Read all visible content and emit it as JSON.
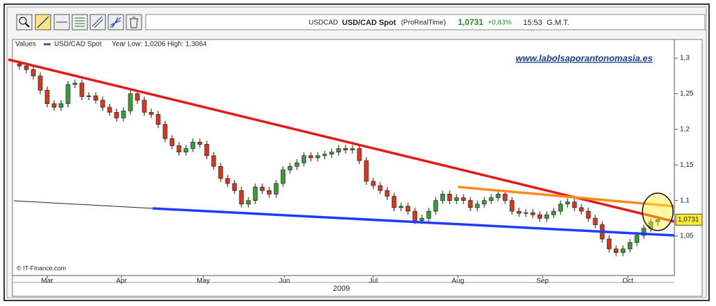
{
  "header": {
    "symbol": "USDCAD",
    "title": "USD/CAD Spot",
    "source": "(ProRealTime)",
    "price": "1,0731",
    "change": "+0,83%",
    "time": "15:53",
    "timezone": "G.M.T."
  },
  "chart_data": {
    "type": "candlestick",
    "legend_prefix": "Values",
    "range_label": "Year Low: 1,0206 High: 1,3064",
    "watermark": "www.labolsaporantonomasia.es",
    "copyright": "© IT-Finance.com",
    "year_label": "2009",
    "last_label": "1,0731",
    "up_color": "#3c9c3c",
    "down_color": "#d23a22",
    "grid": false,
    "ylim": [
      0.9946,
      1.3263
    ],
    "yticks": [
      {
        "value": 1.05,
        "label": "1,05"
      },
      {
        "value": 1.1,
        "label": "1,1"
      },
      {
        "value": 1.15,
        "label": "1,15"
      },
      {
        "value": 1.2,
        "label": "1,2"
      },
      {
        "value": 1.25,
        "label": "1,25"
      },
      {
        "value": 1.3,
        "label": "1,3"
      }
    ],
    "xlim": [
      -1,
      94.4
    ],
    "xticks": [
      {
        "value": 4,
        "label": "Mar"
      },
      {
        "value": 14.7,
        "label": "Apr"
      },
      {
        "value": 26.5,
        "label": "May"
      },
      {
        "value": 38.2,
        "label": "Jun"
      },
      {
        "value": 51,
        "label": "Jul"
      },
      {
        "value": 63.2,
        "label": "Aug"
      },
      {
        "value": 75.4,
        "label": "Sep"
      },
      {
        "value": 87.7,
        "label": "Oct"
      }
    ],
    "series": [
      {
        "name": "USD/CAD Spot",
        "color": "#2a5aa8",
        "open": [
          1.292,
          1.289,
          1.284,
          1.275,
          1.255,
          1.236,
          1.231,
          1.236,
          1.263,
          1.265,
          1.246,
          1.247,
          1.241,
          1.231,
          1.224,
          1.216,
          1.226,
          1.25,
          1.241,
          1.224,
          1.221,
          1.207,
          1.187,
          1.177,
          1.168,
          1.173,
          1.182,
          1.179,
          1.163,
          1.148,
          1.131,
          1.124,
          1.114,
          1.095,
          1.1,
          1.119,
          1.114,
          1.109,
          1.124,
          1.143,
          1.148,
          1.153,
          1.163,
          1.16,
          1.163,
          1.165,
          1.168,
          1.173,
          1.171,
          1.173,
          1.156,
          1.127,
          1.121,
          1.114,
          1.106,
          1.09,
          1.092,
          1.085,
          1.072,
          1.075,
          1.085,
          1.1,
          1.109,
          1.1,
          1.104,
          1.1,
          1.09,
          1.095,
          1.1,
          1.104,
          1.109,
          1.1,
          1.085,
          1.082,
          1.083,
          1.08,
          1.075,
          1.08,
          1.085,
          1.095,
          1.098,
          1.09,
          1.085,
          1.075,
          1.066,
          1.046,
          1.032,
          1.027,
          1.032,
          1.041,
          1.051,
          1.061,
          1.07
        ],
        "high": [
          1.297,
          1.294,
          1.289,
          1.28,
          1.26,
          1.241,
          1.241,
          1.268,
          1.27,
          1.27,
          1.252,
          1.252,
          1.246,
          1.236,
          1.229,
          1.231,
          1.255,
          1.255,
          1.246,
          1.229,
          1.226,
          1.212,
          1.192,
          1.182,
          1.178,
          1.187,
          1.187,
          1.184,
          1.168,
          1.153,
          1.136,
          1.129,
          1.119,
          1.105,
          1.124,
          1.124,
          1.119,
          1.129,
          1.148,
          1.153,
          1.158,
          1.168,
          1.168,
          1.168,
          1.17,
          1.173,
          1.178,
          1.178,
          1.178,
          1.178,
          1.161,
          1.132,
          1.126,
          1.119,
          1.111,
          1.097,
          1.097,
          1.09,
          1.08,
          1.09,
          1.105,
          1.114,
          1.114,
          1.109,
          1.109,
          1.105,
          1.1,
          1.105,
          1.109,
          1.114,
          1.114,
          1.105,
          1.09,
          1.088,
          1.088,
          1.085,
          1.085,
          1.09,
          1.1,
          1.103,
          1.103,
          1.095,
          1.09,
          1.08,
          1.071,
          1.051,
          1.037,
          1.037,
          1.046,
          1.056,
          1.066,
          1.075,
          1.078
        ],
        "low": [
          1.284,
          1.279,
          1.27,
          1.25,
          1.231,
          1.226,
          1.226,
          1.231,
          1.258,
          1.241,
          1.241,
          1.236,
          1.226,
          1.219,
          1.211,
          1.211,
          1.221,
          1.236,
          1.219,
          1.216,
          1.202,
          1.182,
          1.172,
          1.163,
          1.163,
          1.168,
          1.174,
          1.158,
          1.143,
          1.126,
          1.119,
          1.109,
          1.09,
          1.09,
          1.095,
          1.109,
          1.104,
          1.104,
          1.119,
          1.138,
          1.143,
          1.148,
          1.155,
          1.155,
          1.158,
          1.16,
          1.163,
          1.166,
          1.166,
          1.151,
          1.122,
          1.116,
          1.109,
          1.101,
          1.085,
          1.085,
          1.08,
          1.067,
          1.067,
          1.07,
          1.08,
          1.095,
          1.095,
          1.095,
          1.095,
          1.085,
          1.085,
          1.09,
          1.095,
          1.099,
          1.095,
          1.08,
          1.077,
          1.077,
          1.075,
          1.07,
          1.07,
          1.075,
          1.08,
          1.09,
          1.085,
          1.08,
          1.07,
          1.061,
          1.041,
          1.027,
          1.022,
          1.022,
          1.027,
          1.036,
          1.046,
          1.056,
          1.065
        ],
        "close": [
          1.289,
          1.284,
          1.275,
          1.255,
          1.236,
          1.231,
          1.236,
          1.263,
          1.265,
          1.246,
          1.247,
          1.241,
          1.231,
          1.224,
          1.216,
          1.226,
          1.25,
          1.241,
          1.224,
          1.221,
          1.207,
          1.187,
          1.177,
          1.168,
          1.173,
          1.182,
          1.179,
          1.163,
          1.148,
          1.131,
          1.124,
          1.114,
          1.095,
          1.1,
          1.119,
          1.114,
          1.109,
          1.124,
          1.143,
          1.148,
          1.153,
          1.163,
          1.16,
          1.163,
          1.165,
          1.168,
          1.173,
          1.171,
          1.173,
          1.156,
          1.127,
          1.121,
          1.114,
          1.106,
          1.09,
          1.092,
          1.085,
          1.072,
          1.075,
          1.085,
          1.1,
          1.109,
          1.1,
          1.104,
          1.1,
          1.09,
          1.095,
          1.1,
          1.104,
          1.109,
          1.1,
          1.085,
          1.082,
          1.083,
          1.08,
          1.075,
          1.08,
          1.085,
          1.095,
          1.098,
          1.09,
          1.085,
          1.075,
          1.066,
          1.046,
          1.032,
          1.027,
          1.032,
          1.041,
          1.051,
          1.061,
          1.07,
          1.0731
        ]
      }
    ]
  }
}
